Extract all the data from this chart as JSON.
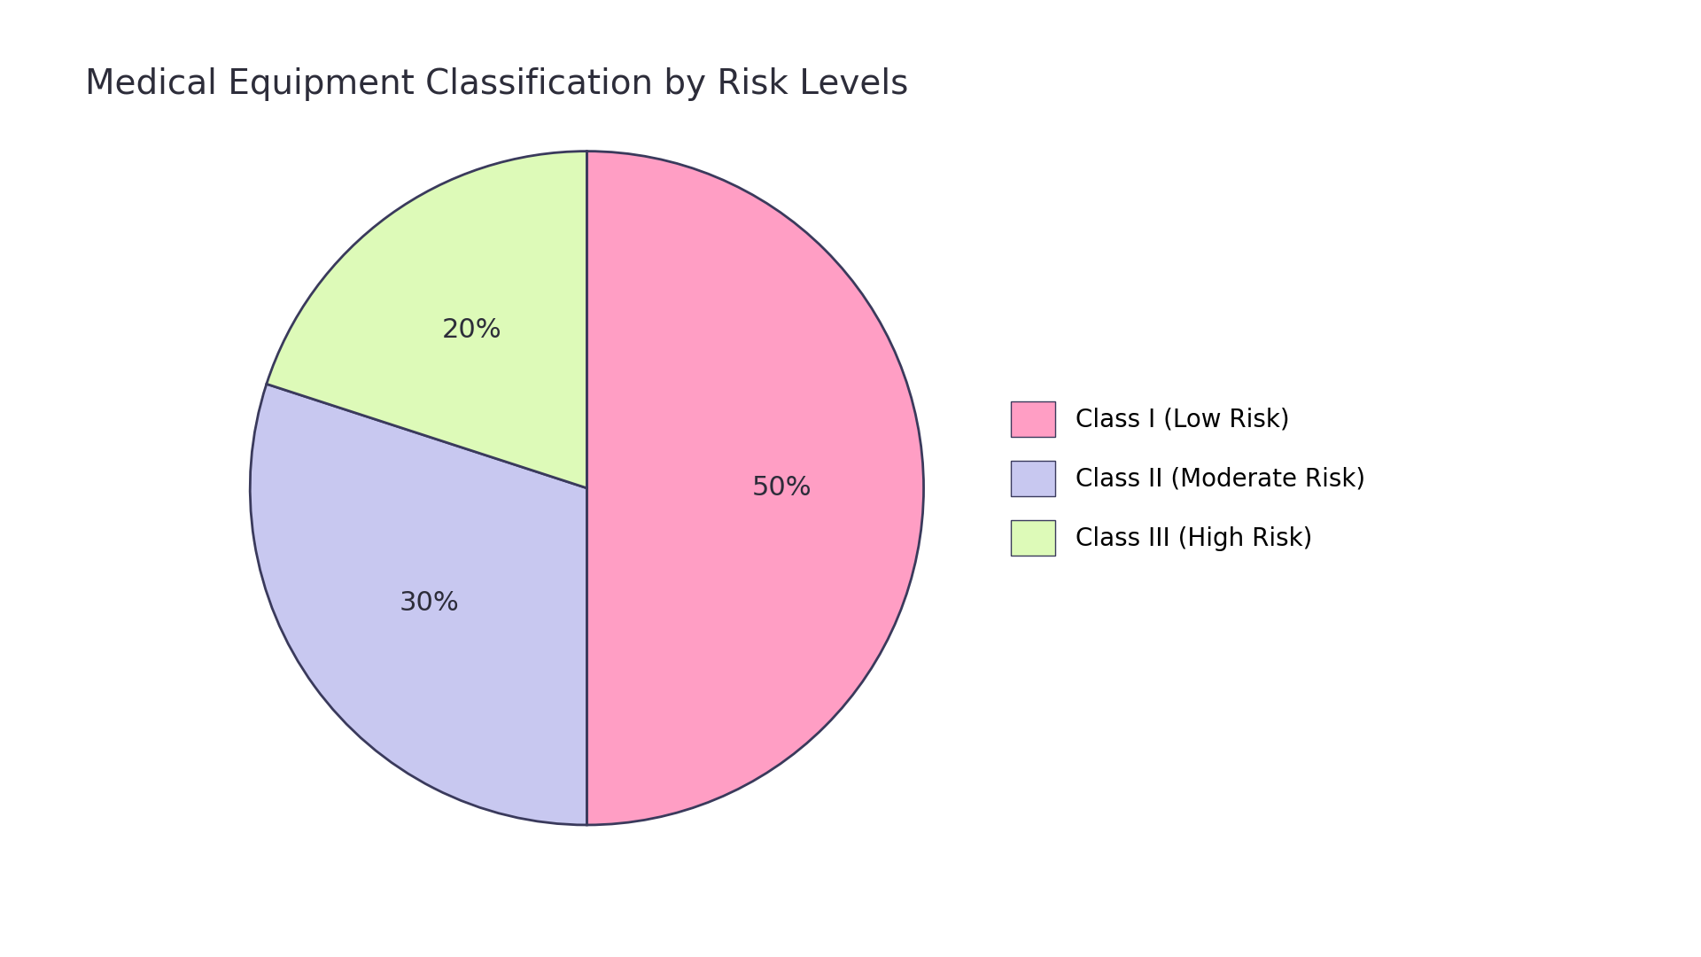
{
  "title": "Medical Equipment Classification by Risk Levels",
  "labels": [
    "Class I (Low Risk)",
    "Class II (Moderate Risk)",
    "Class III (High Risk)"
  ],
  "sizes": [
    50,
    30,
    20
  ],
  "colors": [
    "#FF9EC4",
    "#C8C8F0",
    "#DDFAB8"
  ],
  "edge_color": "#3a3a5c",
  "edge_width": 2.0,
  "pct_labels": [
    "50%",
    "30%",
    "20%"
  ],
  "startangle": 90,
  "title_fontsize": 28,
  "pct_fontsize": 22,
  "legend_fontsize": 20,
  "background_color": "#ffffff"
}
